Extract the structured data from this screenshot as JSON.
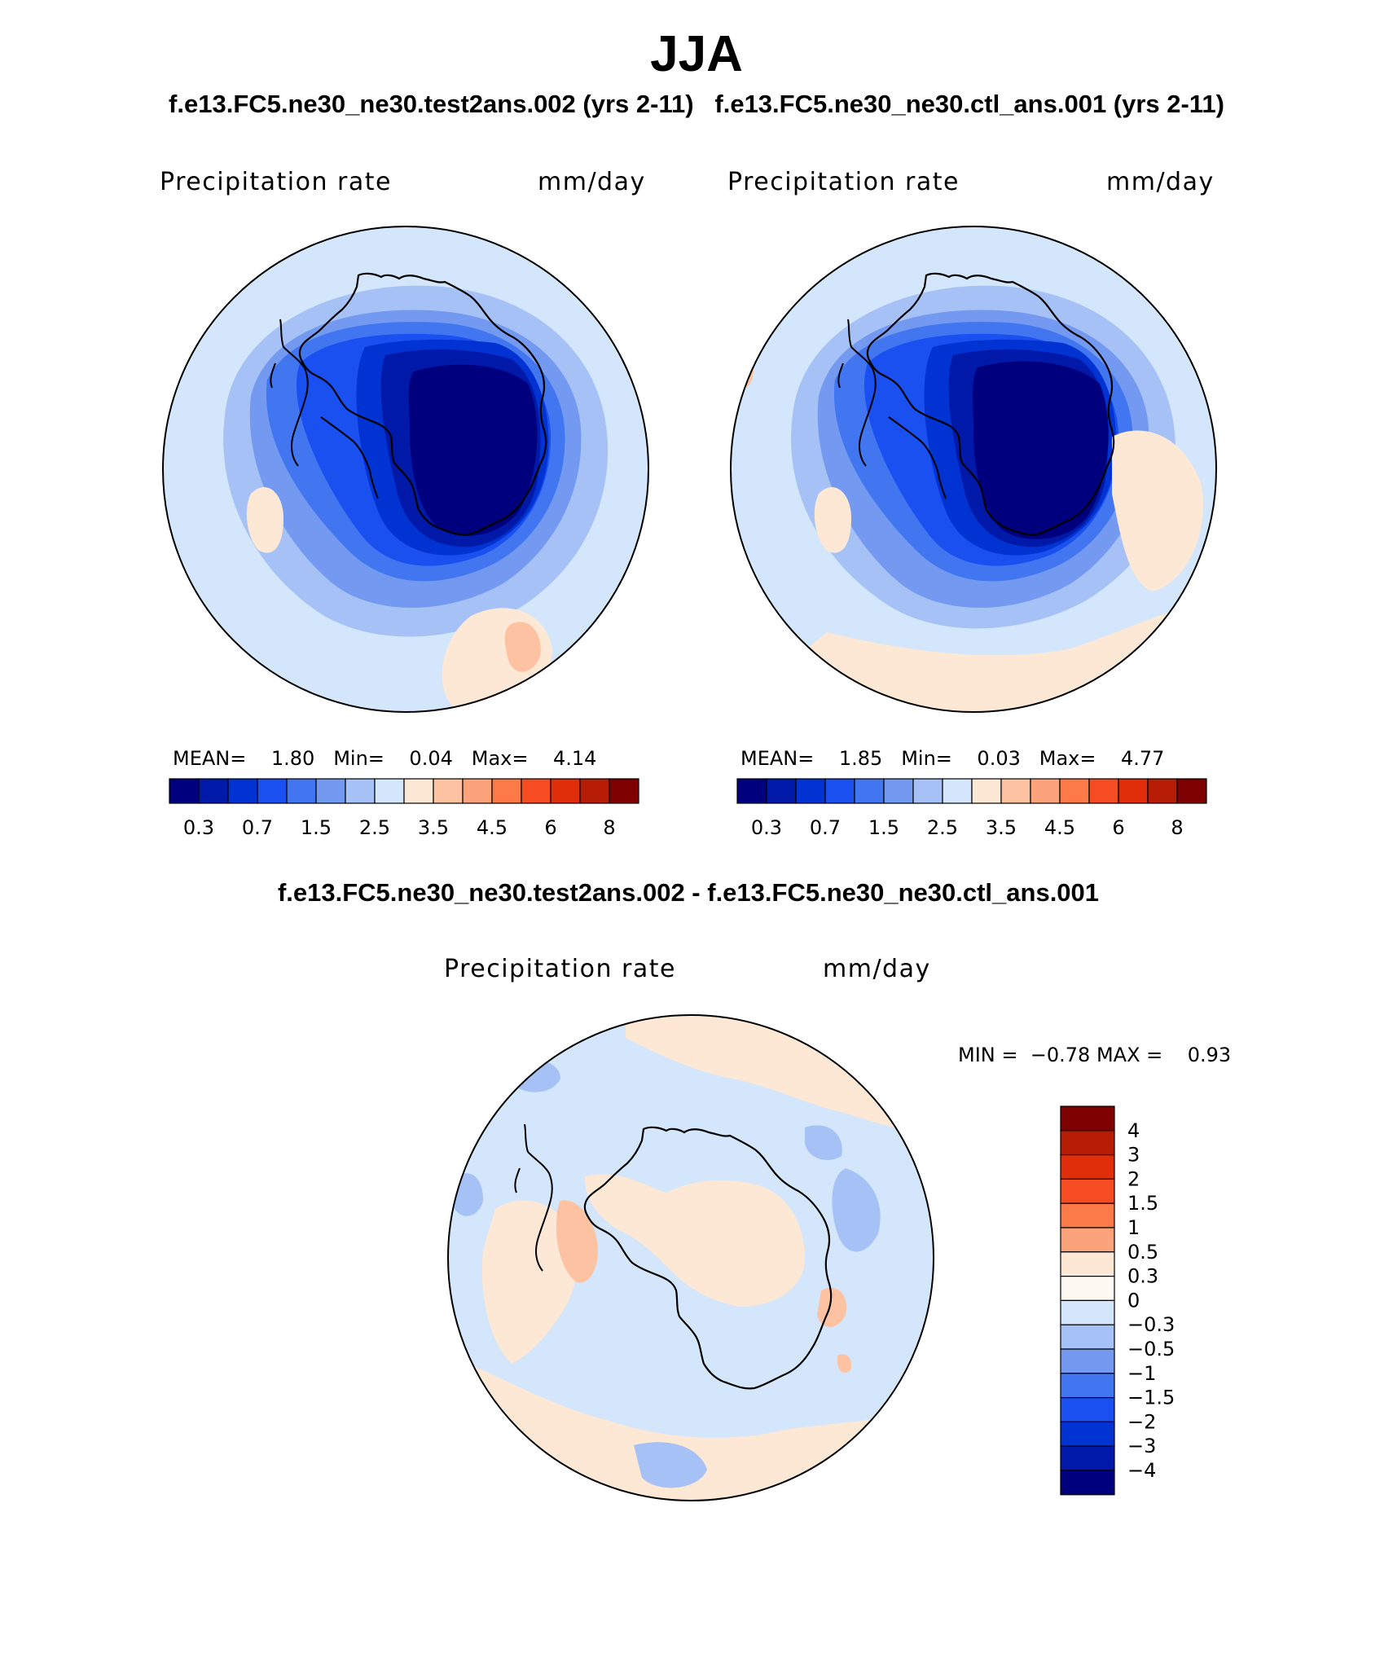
{
  "title": "JJA",
  "subtitle_left": "f.e13.FC5.ne30_ne30.test2ans.002 (yrs 2-11)",
  "subtitle_right": "f.e13.FC5.ne30_ne30.ctl_ans.001 (yrs 2-11)",
  "diff_title": "f.e13.FC5.ne30_ne30.test2ans.002 - f.e13.FC5.ne30_ne30.ctl_ans.001",
  "panels": [
    {
      "id": "test",
      "variable": "Precipitation rate",
      "units": "mm/day",
      "mean_label": "MEAN=",
      "mean_value": "1.80",
      "min_label": "Min=",
      "min_value": "0.04",
      "max_label": "Max=",
      "max_value": "4.14"
    },
    {
      "id": "ctl",
      "variable": "Precipitation rate",
      "units": "mm/day",
      "mean_label": "MEAN=",
      "mean_value": "1.85",
      "min_label": "Min=",
      "min_value": "0.03",
      "max_label": "Max=",
      "max_value": "4.77"
    }
  ],
  "diff_panel": {
    "variable": "Precipitation rate",
    "units": "mm/day",
    "min_label": "MIN =",
    "min_value": "−0.78",
    "max_label": "MAX =",
    "max_value": "0.93"
  },
  "abs_colorbar": {
    "colors": [
      "#00007f",
      "#0019a8",
      "#0033d1",
      "#1a4ff0",
      "#4275f0",
      "#7399f0",
      "#a6c1f5",
      "#d3e6fb",
      "#fde8d6",
      "#fcc2a2",
      "#fca37c",
      "#fb7a48",
      "#f54d21",
      "#e02d0a",
      "#b71d05",
      "#7f0000"
    ],
    "tick_labels": [
      "0.3",
      "0.7",
      "1.5",
      "2.5",
      "3.5",
      "4.5",
      "6",
      "8"
    ]
  },
  "diff_colorbar": {
    "colors": [
      "#7f0000",
      "#b71d05",
      "#e02d0a",
      "#f54d21",
      "#fb7a48",
      "#fca37c",
      "#fde8d6",
      "#fef8f3",
      "#d3e6fb",
      "#a6c1f5",
      "#7399f0",
      "#4275f0",
      "#1a4ff0",
      "#0033d1",
      "#0019a8",
      "#00007f"
    ],
    "tick_labels": [
      "4",
      "3",
      "2",
      "1.5",
      "1",
      "0.5",
      "0.3",
      "0",
      "−0.3",
      "−0.5",
      "−1",
      "−1.5",
      "−2",
      "−3",
      "−4"
    ]
  }
}
